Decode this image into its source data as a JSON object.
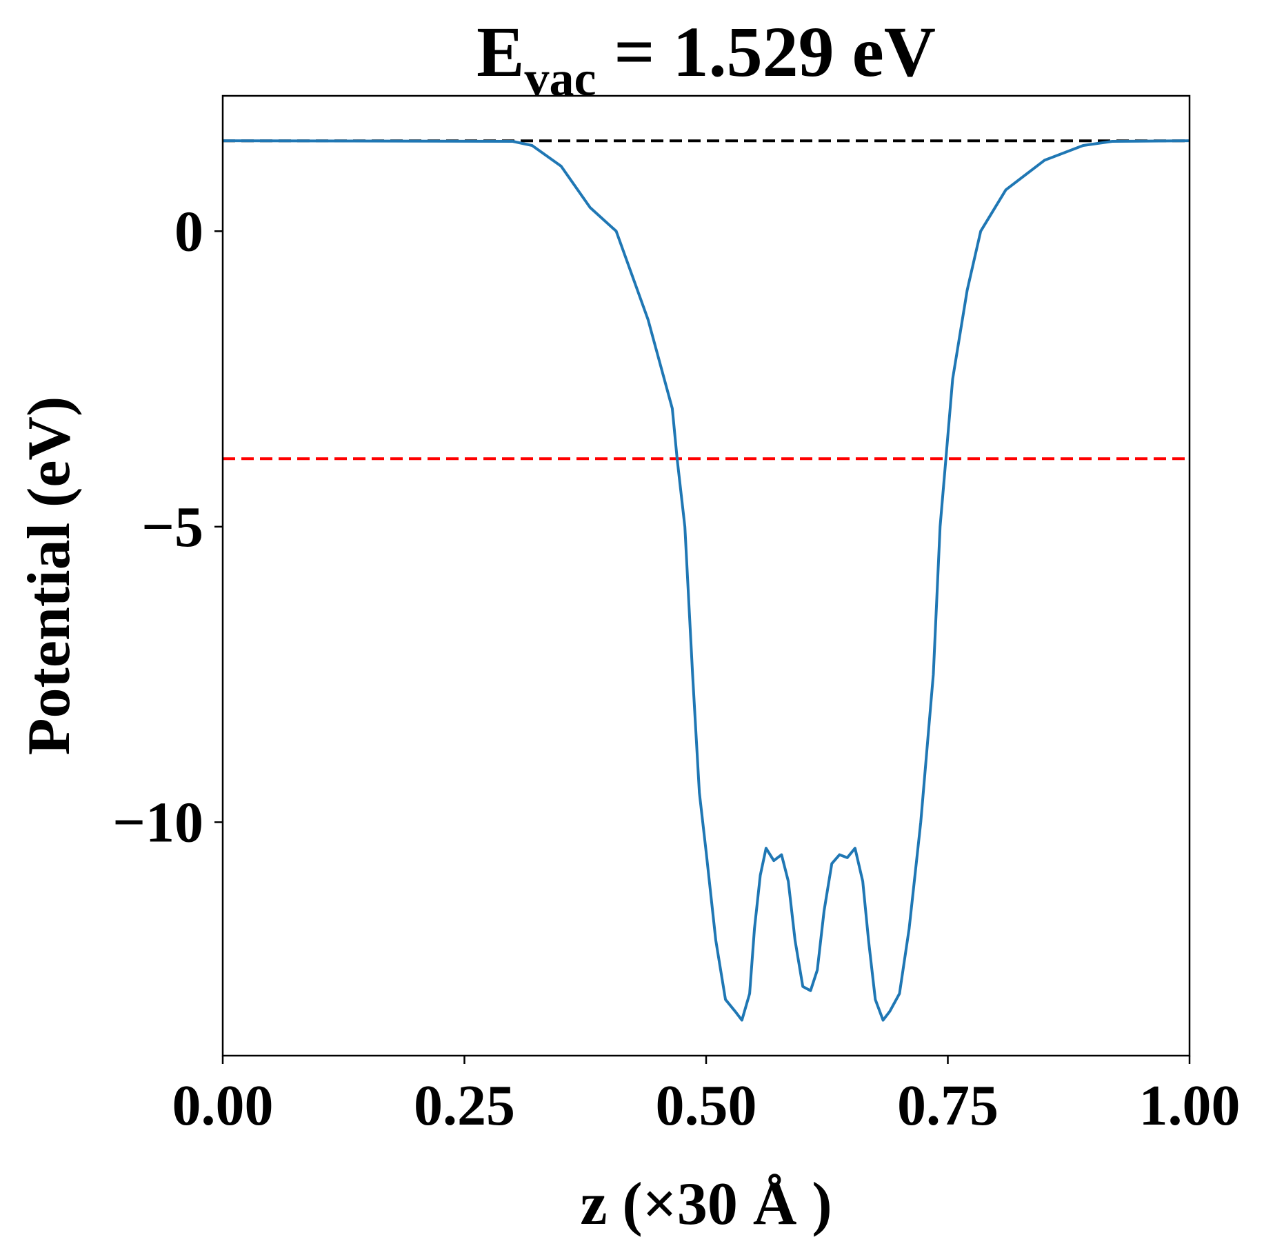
{
  "chart_data": {
    "type": "line",
    "title": {
      "symbol": "E",
      "subscript": "vac",
      "text": " = 1.529 eV"
    },
    "xlabel": "z (×30 Å )",
    "ylabel": "Potential (eV)",
    "xlim": [
      0,
      1
    ],
    "ylim": [
      -13.95,
      2.29
    ],
    "xticks": [
      {
        "value": 0,
        "label": "0.00"
      },
      {
        "value": 0.25,
        "label": "0.25"
      },
      {
        "value": 0.5,
        "label": "0.50"
      },
      {
        "value": 0.75,
        "label": "0.75"
      },
      {
        "value": 1,
        "label": "1.00"
      }
    ],
    "yticks": [
      0,
      {
        "value": -5,
        "label": "−5"
      },
      {
        "value": -10,
        "label": "−10"
      }
    ],
    "hlines": [
      {
        "value": 1.529,
        "color": "#000000"
      },
      {
        "value": -3.85,
        "color": "#ff0000"
      }
    ],
    "series": [
      {
        "name": "Potential",
        "color": "#1f77b4",
        "x": [
          0,
          0.3,
          0.32,
          0.35,
          0.38,
          0.407,
          0.44,
          0.465,
          0.47,
          0.478,
          0.486,
          0.493,
          0.5,
          0.51,
          0.52,
          0.53,
          0.537,
          0.545,
          0.55,
          0.556,
          0.562,
          0.57,
          0.578,
          0.585,
          0.592,
          0.6,
          0.608,
          0.615,
          0.622,
          0.63,
          0.638,
          0.646,
          0.654,
          0.662,
          0.668,
          0.675,
          0.683,
          0.69,
          0.7,
          0.71,
          0.722,
          0.735,
          0.742,
          0.748,
          0.755,
          0.77,
          0.784,
          0.81,
          0.85,
          0.89,
          0.92,
          1.0
        ],
        "values": [
          1.53,
          1.52,
          1.45,
          1.1,
          0.4,
          0.0,
          -1.5,
          -3.0,
          -3.85,
          -5.0,
          -7.5,
          -9.5,
          -10.5,
          -12.0,
          -13.0,
          -13.2,
          -13.35,
          -12.9,
          -11.8,
          -10.9,
          -10.44,
          -10.65,
          -10.55,
          -11.0,
          -12.0,
          -12.78,
          -12.85,
          -12.5,
          -11.5,
          -10.7,
          -10.55,
          -10.6,
          -10.44,
          -11.0,
          -12.0,
          -13.0,
          -13.35,
          -13.2,
          -12.9,
          -11.8,
          -10.0,
          -7.5,
          -5.0,
          -3.85,
          -2.5,
          -1.0,
          0.0,
          0.7,
          1.2,
          1.45,
          1.52,
          1.53
        ]
      }
    ]
  }
}
